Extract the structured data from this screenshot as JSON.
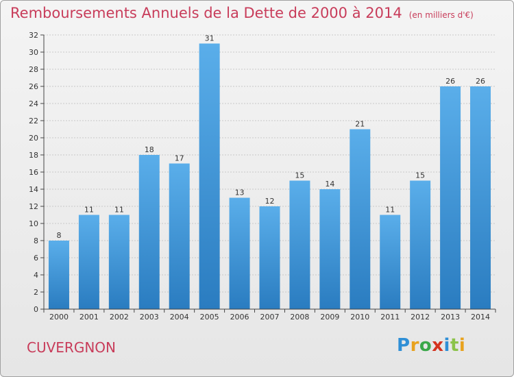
{
  "title": "Remboursements Annuels de la Dette de 2000 à 2014",
  "subtitle": "(en milliers d'€)",
  "commune": "CUVERGNON",
  "logo": "Proxiti",
  "colors": {
    "bar_light": "#5aaeea",
    "bar_dark": "#2a7cc0",
    "title": "#c83c5a",
    "grid": "#c8c8c8"
  },
  "chart_data": {
    "type": "bar",
    "categories": [
      "2000",
      "2001",
      "2002",
      "2003",
      "2004",
      "2005",
      "2006",
      "2007",
      "2008",
      "2009",
      "2010",
      "2011",
      "2012",
      "2013",
      "2014"
    ],
    "values": [
      8,
      11,
      11,
      18,
      17,
      31,
      13,
      12,
      15,
      14,
      21,
      11,
      15,
      26,
      26
    ],
    "ylim": [
      0,
      32
    ],
    "yticks": [
      0,
      2,
      4,
      6,
      8,
      10,
      12,
      14,
      16,
      18,
      20,
      22,
      24,
      26,
      28,
      30,
      32
    ],
    "grid": true
  }
}
